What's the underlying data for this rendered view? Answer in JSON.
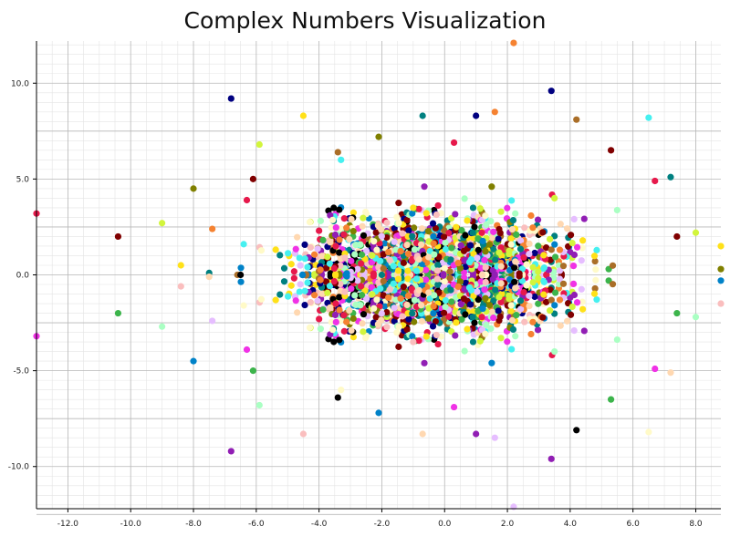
{
  "chart_data": {
    "type": "scatter",
    "title": "Complex Numbers Visualization",
    "xlabel": "",
    "ylabel": "",
    "xlim": [
      -13.0,
      8.8
    ],
    "ylim": [
      -12.2,
      12.2
    ],
    "x_ticks": [
      -12.0,
      -10.0,
      -8.0,
      -6.0,
      -4.0,
      -2.0,
      0.0,
      2.0,
      4.0,
      6.0,
      8.0
    ],
    "x_tick_labels": [
      "-12.0",
      "-10.0",
      "-8.0",
      "-6.0",
      "-4.0",
      "-2.0",
      "0.0",
      "2.0",
      "4.0",
      "6.0",
      "8.0"
    ],
    "y_ticks": [
      -10.0,
      -5.0,
      0.0,
      5.0,
      10.0
    ],
    "y_tick_labels": [
      "-10.0",
      "-5.0",
      "0.0",
      "5.0",
      "10.0"
    ],
    "grid": true,
    "legend": "none",
    "colors": [
      "#e6194b",
      "#3cb44b",
      "#ffe119",
      "#0082c8",
      "#f58231",
      "#911eb4",
      "#46f0f0",
      "#f032e6",
      "#d2f53c",
      "#fabebe",
      "#008080",
      "#e6beff",
      "#aa6e28",
      "#fffac8",
      "#800000",
      "#aaffc3",
      "#808000",
      "#ffd8b1",
      "#000080",
      "#000000"
    ],
    "series": [
      {
        "points": [
          [
            -13.0,
            3.2
          ],
          [
            -13.0,
            -3.2
          ],
          [
            -10.4,
            2.0
          ],
          [
            -10.4,
            -2.0
          ],
          [
            -9.0,
            2.7
          ],
          [
            -9.0,
            -2.7
          ],
          [
            -8.4,
            0.5
          ],
          [
            -8.4,
            -0.6
          ],
          [
            -8.0,
            4.5
          ],
          [
            -8.0,
            -4.5
          ],
          [
            -7.5,
            0.1
          ],
          [
            -7.5,
            -0.1
          ],
          [
            -7.4,
            2.4
          ],
          [
            -7.4,
            -2.4
          ],
          [
            -6.8,
            9.2
          ],
          [
            -6.8,
            -9.2
          ],
          [
            -6.6,
            0.0
          ],
          [
            -6.5,
            0.0
          ],
          [
            -6.4,
            1.6
          ],
          [
            -6.4,
            -1.6
          ],
          [
            -6.3,
            3.9
          ],
          [
            -6.3,
            -3.9
          ],
          [
            -6.1,
            5.0
          ],
          [
            -6.1,
            -5.0
          ],
          [
            -5.9,
            6.8
          ],
          [
            -5.9,
            -6.8
          ],
          [
            -4.5,
            8.3
          ],
          [
            -4.5,
            -8.3
          ],
          [
            -2.1,
            7.2
          ],
          [
            -2.1,
            -7.2
          ],
          [
            -0.7,
            8.3
          ],
          [
            -0.7,
            -8.3
          ],
          [
            2.2,
            12.1
          ],
          [
            2.2,
            -12.1
          ],
          [
            3.4,
            9.6
          ],
          [
            3.4,
            -9.6
          ],
          [
            4.2,
            8.1
          ],
          [
            4.2,
            -8.1
          ],
          [
            6.5,
            8.2
          ],
          [
            6.5,
            -8.2
          ],
          [
            6.7,
            4.9
          ],
          [
            6.7,
            -4.9
          ],
          [
            7.4,
            2.0
          ],
          [
            7.4,
            -2.0
          ],
          [
            8.0,
            2.2
          ],
          [
            8.0,
            -2.2
          ],
          [
            8.8,
            1.5
          ],
          [
            8.8,
            -1.5
          ],
          [
            8.8,
            0.3
          ],
          [
            8.8,
            -0.3
          ],
          [
            7.2,
            5.1
          ],
          [
            7.2,
            -5.1
          ],
          [
            1.6,
            8.5
          ],
          [
            1.6,
            -8.5
          ],
          [
            1.0,
            8.3
          ],
          [
            1.0,
            -8.3
          ],
          [
            -3.4,
            6.4
          ],
          [
            -3.4,
            -6.4
          ],
          [
            -3.3,
            6.0
          ],
          [
            -3.3,
            -6.0
          ],
          [
            0.3,
            6.9
          ],
          [
            0.3,
            -6.9
          ],
          [
            5.3,
            6.5
          ],
          [
            5.3,
            -6.5
          ],
          [
            3.5,
            4.0
          ],
          [
            3.5,
            -4.0
          ],
          [
            -1.0,
            3.5
          ],
          [
            -1.0,
            -3.5
          ],
          [
            1.5,
            4.6
          ],
          [
            1.5,
            -4.6
          ],
          [
            -2.0,
            0.0
          ],
          [
            1.2,
            0.0
          ]
        ]
      }
    ]
  }
}
